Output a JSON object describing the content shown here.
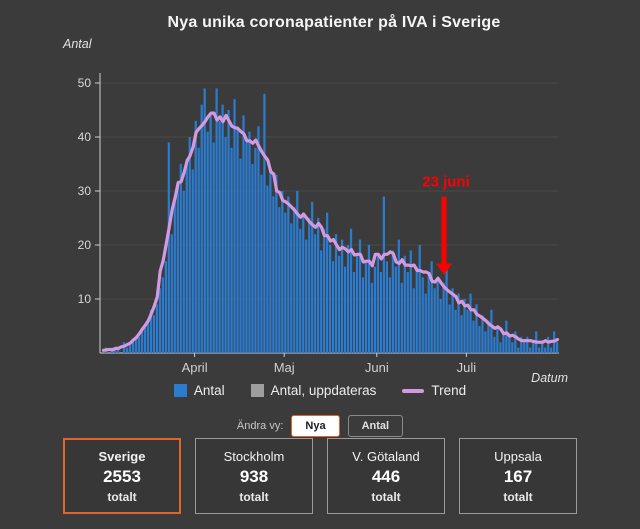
{
  "title": "Nya unika coronapatienter på IVA i Sverige",
  "chart_data": {
    "type": "bar",
    "title": "Nya unika coronapatienter på IVA i Sverige",
    "xlabel": "Datum",
    "ylabel": "Antal",
    "ylim": [
      0,
      50
    ],
    "yticks": [
      10,
      20,
      30,
      40,
      50
    ],
    "grid": true,
    "start_date": "2020-03-01",
    "x_interval": "day",
    "xticks": [
      {
        "label": "April",
        "date": "2020-04-01"
      },
      {
        "label": "Maj",
        "date": "2020-05-01"
      },
      {
        "label": "Juni",
        "date": "2020-06-01"
      },
      {
        "label": "Juli",
        "date": "2020-07-01"
      }
    ],
    "series": [
      {
        "name": "Antal",
        "type": "bar",
        "color": "#2b7bce",
        "values": [
          0,
          1,
          0,
          1,
          1,
          1,
          0,
          2,
          1,
          2,
          2,
          3,
          3,
          4,
          5,
          6,
          8,
          7,
          9,
          12,
          14,
          17,
          39,
          22,
          28,
          31,
          35,
          30,
          36,
          40,
          34,
          43,
          38,
          46,
          49,
          41,
          44,
          39,
          49,
          43,
          46,
          40,
          45,
          38,
          47,
          42,
          36,
          44,
          39,
          41,
          35,
          38,
          42,
          33,
          48,
          31,
          34,
          29,
          33,
          27,
          30,
          26,
          29,
          24,
          27,
          30,
          23,
          26,
          21,
          25,
          28,
          22,
          25,
          19,
          23,
          26,
          20,
          17,
          22,
          18,
          21,
          16,
          20,
          23,
          15,
          18,
          21,
          14,
          17,
          20,
          13,
          16,
          18,
          15,
          29,
          17,
          14,
          19,
          16,
          21,
          13,
          18,
          15,
          19,
          12,
          16,
          20,
          14,
          11,
          15,
          17,
          12,
          14,
          10,
          13,
          16,
          9,
          12,
          8,
          11,
          7,
          10,
          8,
          11,
          6,
          9,
          5,
          7,
          4,
          6,
          8,
          3,
          5,
          2,
          4,
          6,
          3,
          2,
          4,
          1,
          3,
          2,
          3,
          1,
          2,
          4,
          1,
          2,
          1,
          3,
          1,
          4,
          2
        ]
      },
      {
        "name": "Trend",
        "type": "line",
        "color": "#d49ae0",
        "derived_from": "Antal",
        "window": 7
      }
    ],
    "annotation": {
      "text": "23 juni",
      "date": "2020-06-23",
      "color": "#ff0000"
    },
    "axis_color": "#cfcfcf",
    "grid_color": "#484848"
  },
  "legend": [
    {
      "label": "Antal",
      "swatch": "square",
      "color": "#2b7bce"
    },
    {
      "label": "Antal, uppdateras",
      "swatch": "square",
      "color": "#9e9e9e"
    },
    {
      "label": "Trend",
      "swatch": "line",
      "color": "#d49ae0"
    }
  ],
  "view_switch": {
    "label": "Ändra vy:",
    "options": [
      {
        "label": "Nya",
        "selected": true
      },
      {
        "label": "Antal",
        "selected": false
      }
    ]
  },
  "cards": [
    {
      "region": "Sverige",
      "value": "2553",
      "unit": "totalt",
      "selected": true
    },
    {
      "region": "Stockholm",
      "value": "938",
      "unit": "totalt",
      "selected": false
    },
    {
      "region": "V. Götaland",
      "value": "446",
      "unit": "totalt",
      "selected": false
    },
    {
      "region": "Uppsala",
      "value": "167",
      "unit": "totalt",
      "selected": false
    }
  ],
  "colors": {
    "background": "#3b3b3b",
    "accent": "#e0662e",
    "bar": "#2b7bce",
    "trend": "#d49ae0",
    "annotation": "#ff0000"
  }
}
